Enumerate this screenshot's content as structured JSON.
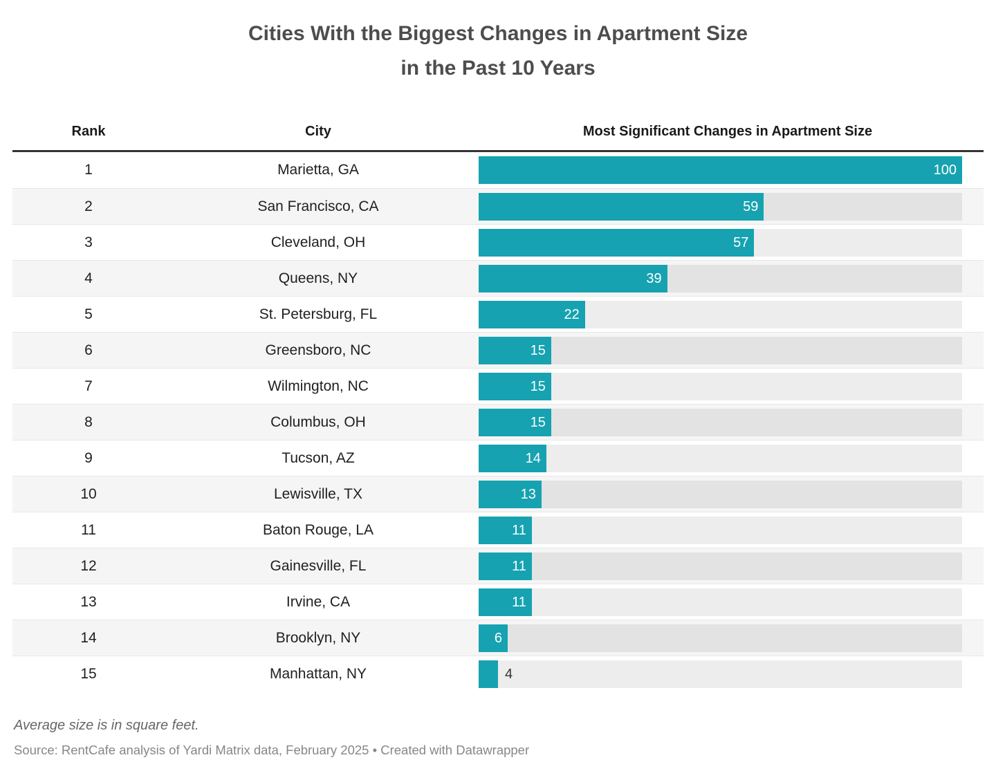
{
  "title": {
    "line1": "Cities With the Biggest Changes in Apartment Size",
    "line2": "in the Past 10 Years"
  },
  "table": {
    "headers": {
      "rank": "Rank",
      "city": "City",
      "bar": "Most Significant Changes in Apartment Size"
    },
    "rows": [
      {
        "rank": "1",
        "city": "Marietta, GA",
        "value": 100
      },
      {
        "rank": "2",
        "city": "San Francisco, CA",
        "value": 59
      },
      {
        "rank": "3",
        "city": "Cleveland, OH",
        "value": 57
      },
      {
        "rank": "4",
        "city": "Queens, NY",
        "value": 39
      },
      {
        "rank": "5",
        "city": "St. Petersburg, FL",
        "value": 22
      },
      {
        "rank": "6",
        "city": "Greensboro, NC",
        "value": 15
      },
      {
        "rank": "7",
        "city": "Wilmington, NC",
        "value": 15
      },
      {
        "rank": "8",
        "city": "Columbus, OH",
        "value": 15
      },
      {
        "rank": "9",
        "city": "Tucson, AZ",
        "value": 14
      },
      {
        "rank": "10",
        "city": "Lewisville, TX",
        "value": 13
      },
      {
        "rank": "11",
        "city": "Baton Rouge, LA",
        "value": 11
      },
      {
        "rank": "12",
        "city": "Gainesville, FL",
        "value": 11
      },
      {
        "rank": "13",
        "city": "Irvine, CA",
        "value": 11
      },
      {
        "rank": "14",
        "city": "Brooklyn, NY",
        "value": 6
      },
      {
        "rank": "15",
        "city": "Manhattan, NY",
        "value": 4
      }
    ]
  },
  "footer": {
    "note": "Average size is in square feet.",
    "source": "Source: RentCafe analysis of Yardi Matrix data, February 2025 • Created with Datawrapper"
  },
  "colors": {
    "bar": "#16a2b0",
    "bar_track": "rgba(0,0,0,0.072)",
    "row_stripe": "#f5f5f5",
    "header_rule": "#333333",
    "title_text": "#4d4d4d",
    "body_text": "#1f1f1f",
    "bar_label_inside": "#ffffff",
    "bar_label_outside": "#333333",
    "note_text": "#666666",
    "source_text": "#878787"
  },
  "chart_data": {
    "type": "bar",
    "orientation": "horizontal",
    "title": "Cities With the Biggest Changes in Apartment Size in the Past 10 Years",
    "categories": [
      "Marietta, GA",
      "San Francisco, CA",
      "Cleveland, OH",
      "Queens, NY",
      "St. Petersburg, FL",
      "Greensboro, NC",
      "Wilmington, NC",
      "Columbus, OH",
      "Tucson, AZ",
      "Lewisville, TX",
      "Baton Rouge, LA",
      "Gainesville, FL",
      "Irvine, CA",
      "Brooklyn, NY",
      "Manhattan, NY"
    ],
    "values": [
      100,
      59,
      57,
      39,
      22,
      15,
      15,
      15,
      14,
      13,
      11,
      11,
      11,
      6,
      4
    ],
    "series_label": "Most Significant Changes in Apartment Size",
    "xlabel": "",
    "ylabel": "",
    "value_axis_range": [
      0,
      100
    ],
    "data_labels": "on",
    "grid": "off",
    "legend": "none",
    "bar_color": "#16a2b0",
    "note": "Average size is in square feet.",
    "source": "Source: RentCafe analysis of Yardi Matrix data, February 2025 • Created with Datawrapper"
  }
}
